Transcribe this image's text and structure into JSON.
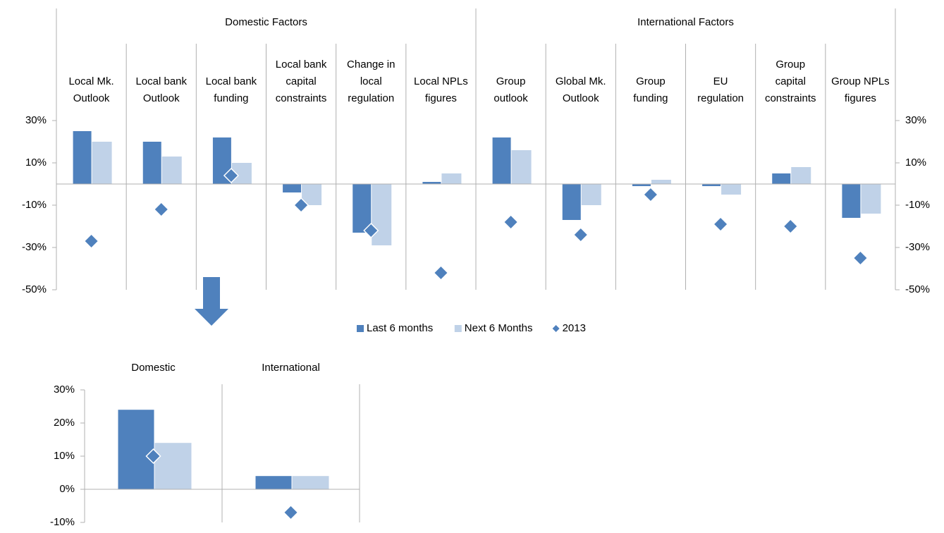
{
  "chart_data": [
    {
      "type": "bar",
      "groups": [
        {
          "label": "Domestic Factors",
          "span": 6
        },
        {
          "label": "International Factors",
          "span": 6
        }
      ],
      "categories": [
        "Local Mk.\nOutlook",
        "Local bank\nOutlook",
        "Local bank\nfunding",
        "Local bank\ncapital\nconstraints",
        "Change in\nlocal\nregulation",
        "Local NPLs\nfigures",
        "Group\noutlook",
        "Global Mk.\nOutlook",
        "Group\nfunding",
        "EU\nregulation",
        "Group\ncapital\nconstraints",
        "Group NPLs\nfigures"
      ],
      "series": [
        {
          "name": "Last 6 months",
          "color": "#4f81bd",
          "kind": "bar",
          "values": [
            25,
            20,
            22,
            -4,
            -23,
            1,
            22,
            -17,
            -1,
            -1,
            5,
            -16
          ]
        },
        {
          "name": "Next 6 Months",
          "color": "#c0d2e8",
          "kind": "bar",
          "values": [
            20,
            13,
            10,
            -10,
            -29,
            5,
            16,
            -10,
            2,
            -5,
            8,
            -14
          ]
        },
        {
          "name": "2013",
          "color": "#4f81bd",
          "kind": "diamond",
          "values": [
            -27,
            -12,
            4,
            -10,
            -22,
            -42,
            -18,
            -24,
            -5,
            -19,
            -20,
            -35
          ]
        }
      ],
      "ylim": [
        -50,
        30
      ],
      "yticks": [
        {
          "value": -50,
          "label": "-50%"
        },
        {
          "value": -30,
          "label": "-30%"
        },
        {
          "value": -10,
          "label": "-10%"
        },
        {
          "value": 10,
          "label": "10%"
        },
        {
          "value": 30,
          "label": "30%"
        }
      ],
      "legend": "bottom"
    },
    {
      "type": "bar",
      "categories": [
        "Domestic",
        "International"
      ],
      "series": [
        {
          "color": "#4f81bd",
          "kind": "bar",
          "values": [
            24,
            4
          ]
        },
        {
          "color": "#c0d2e8",
          "kind": "bar",
          "values": [
            14,
            4
          ]
        },
        {
          "color": "#4f81bd",
          "kind": "diamond",
          "values": [
            10,
            -7
          ]
        }
      ],
      "ylim": [
        -10,
        30
      ],
      "yticks": [
        {
          "value": -10,
          "label": "-10%"
        },
        {
          "value": 0,
          "label": "0%"
        },
        {
          "value": 10,
          "label": "10%"
        },
        {
          "value": 20,
          "label": "20%"
        },
        {
          "value": 30,
          "label": "30%"
        }
      ]
    }
  ]
}
